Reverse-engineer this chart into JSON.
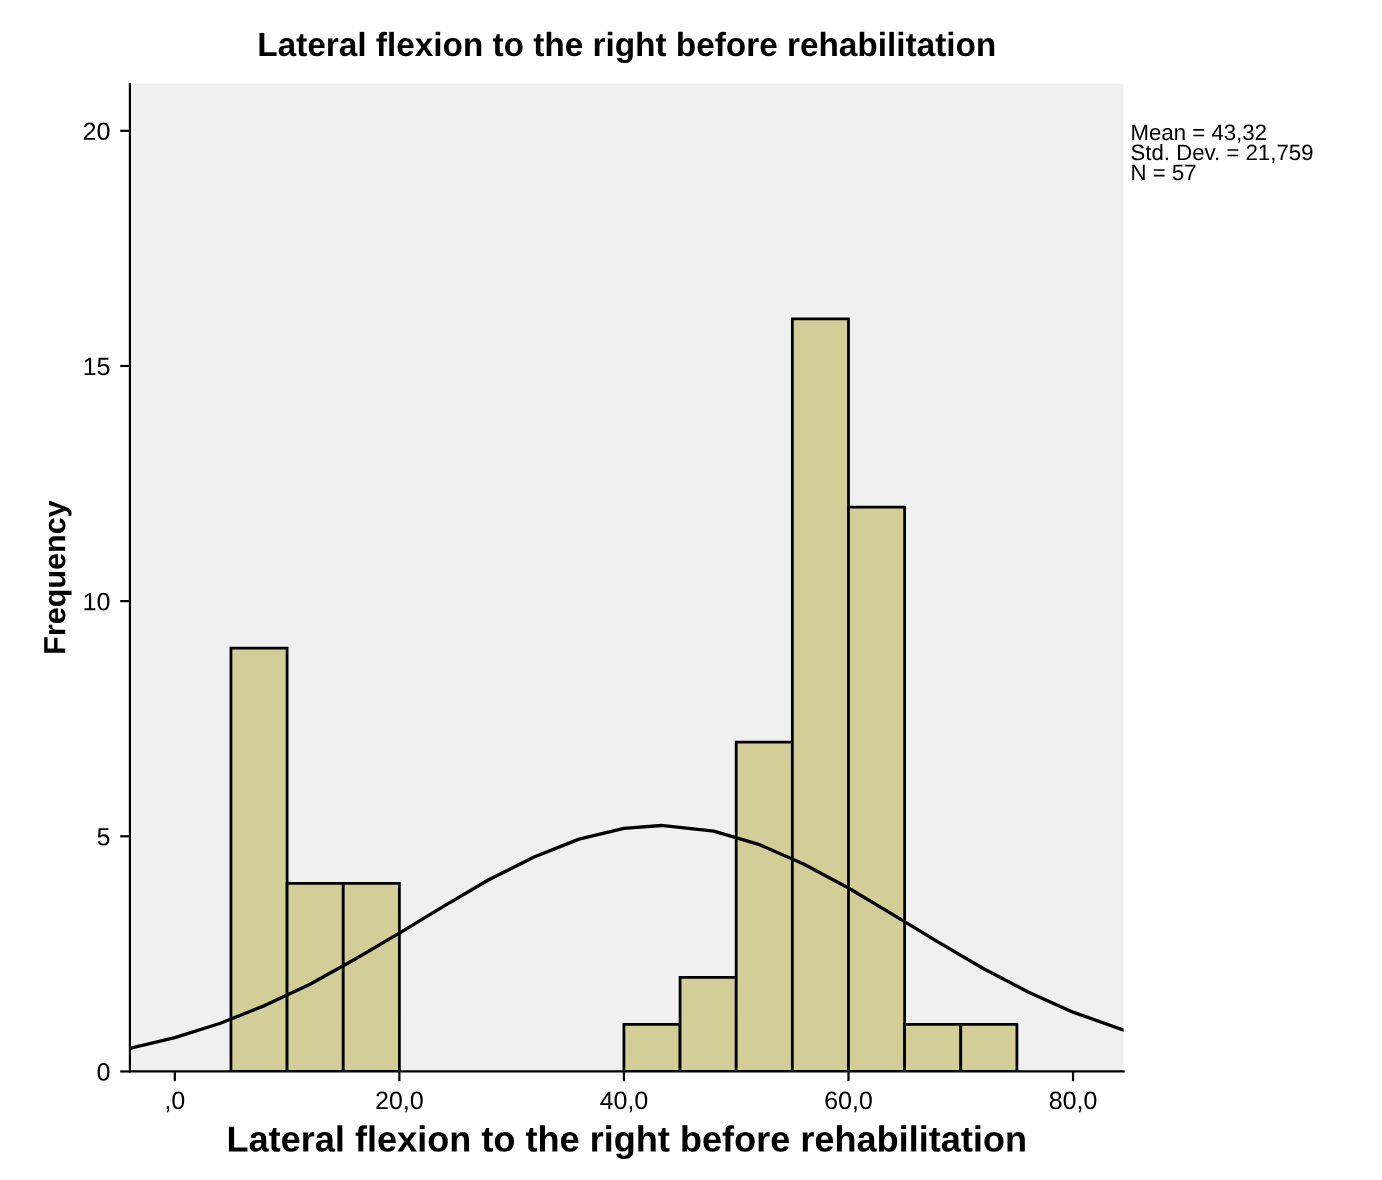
{
  "chart_data": {
    "type": "histogram",
    "title": "Lateral flexion to the right before rehabilitation",
    "xlabel": "Lateral flexion to the right before rehabilitation",
    "ylabel": "Frequency",
    "bins": [
      5,
      10,
      15,
      20,
      25,
      30,
      35,
      40,
      45,
      50,
      55,
      60,
      65,
      70,
      75
    ],
    "values": [
      9,
      4,
      4,
      0,
      0,
      0,
      0,
      1,
      2,
      7,
      16,
      12,
      1,
      1
    ],
    "color": "#d3ce97",
    "series": [
      {
        "type": "line",
        "color": "#000000",
        "x": [
          -4,
          0,
          4,
          8,
          12,
          16,
          20,
          24,
          28,
          32,
          36,
          40,
          43.32,
          48,
          52,
          56,
          60,
          64,
          68,
          72,
          76,
          80,
          84.5
        ],
        "values": [
          0.49,
          0.72,
          1.02,
          1.4,
          1.85,
          2.38,
          2.94,
          3.52,
          4.08,
          4.56,
          4.94,
          5.17,
          5.23,
          5.11,
          4.83,
          4.41,
          3.9,
          3.33,
          2.75,
          2.19,
          1.69,
          1.26,
          0.88
        ]
      }
    ],
    "xlim": [
      -4,
      84.5
    ],
    "ylim": [
      0,
      21
    ],
    "xticks": [
      {
        "value": 0,
        "label": ",0"
      },
      {
        "value": 20,
        "label": "20,0"
      },
      {
        "value": 40,
        "label": "40,0"
      },
      {
        "value": 60,
        "label": "60,0"
      },
      {
        "value": 80,
        "label": "80,0"
      }
    ],
    "yticks": [
      0,
      5,
      10,
      15,
      20
    ],
    "grid": false,
    "annotations": [
      "Mean = 43,32",
      "Std. Dev. = 21,759",
      "N = 57"
    ]
  }
}
